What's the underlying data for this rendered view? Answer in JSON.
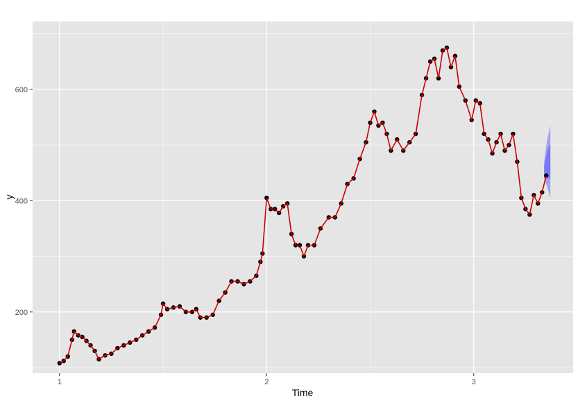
{
  "chart_data": {
    "type": "line",
    "title": "",
    "xlabel": "Time",
    "ylabel": "y",
    "xlim": [
      0.87,
      3.48
    ],
    "ylim": [
      90,
      722
    ],
    "x_ticks": [
      1,
      2,
      3
    ],
    "x_tick_labels": [
      "1",
      "2",
      "3"
    ],
    "y_ticks": [
      200,
      400,
      600
    ],
    "y_tick_labels": [
      "200",
      "400",
      "600"
    ],
    "x_minor_ticks": [
      1.5,
      2.5
    ],
    "y_minor_ticks": [
      100,
      300,
      500,
      700
    ],
    "grid": true,
    "colors": {
      "panel": "#e5e5e5",
      "grid_major": "#ffffff",
      "points": "#000000",
      "fitted": "#cc0000",
      "forecast_band": "#4d4dff"
    },
    "series": [
      {
        "kind": "points",
        "x": [
          1.0,
          1.02,
          1.04,
          1.06,
          1.07,
          1.09,
          1.11,
          1.13,
          1.15,
          1.17,
          1.19,
          1.22,
          1.25,
          1.28,
          1.31,
          1.34,
          1.37,
          1.4,
          1.43,
          1.46,
          1.49,
          1.5,
          1.52,
          1.55,
          1.58,
          1.61,
          1.64,
          1.66,
          1.68,
          1.71,
          1.74,
          1.77,
          1.8,
          1.83,
          1.86,
          1.89,
          1.92,
          1.95,
          1.97,
          1.98,
          2.0,
          2.02,
          2.04,
          2.06,
          2.08,
          2.1,
          2.12,
          2.14,
          2.16,
          2.18,
          2.2,
          2.23,
          2.26,
          2.3,
          2.33,
          2.36,
          2.39,
          2.42,
          2.45,
          2.48,
          2.5,
          2.52,
          2.54,
          2.56,
          2.58,
          2.6,
          2.63,
          2.66,
          2.69,
          2.72,
          2.75,
          2.77,
          2.79,
          2.81,
          2.83,
          2.85,
          2.87,
          2.89,
          2.91,
          2.93,
          2.96,
          2.99,
          3.01,
          3.03,
          3.05,
          3.07,
          3.09,
          3.11,
          3.13,
          3.15,
          3.17,
          3.19,
          3.21,
          3.23,
          3.25,
          3.27,
          3.29,
          3.31,
          3.33,
          3.35
        ],
        "y": [
          108,
          112,
          120,
          150,
          165,
          158,
          155,
          148,
          140,
          130,
          115,
          122,
          125,
          135,
          140,
          145,
          150,
          158,
          165,
          172,
          195,
          215,
          205,
          208,
          210,
          200,
          200,
          205,
          190,
          190,
          195,
          220,
          235,
          255,
          255,
          250,
          255,
          265,
          290,
          305,
          405,
          385,
          385,
          378,
          390,
          395,
          340,
          320,
          320,
          300,
          320,
          320,
          350,
          370,
          370,
          395,
          430,
          440,
          475,
          505,
          540,
          560,
          535,
          540,
          520,
          490,
          510,
          490,
          505,
          520,
          590,
          620,
          650,
          655,
          620,
          670,
          675,
          640,
          660,
          605,
          580,
          545,
          580,
          575,
          520,
          510,
          485,
          505,
          520,
          490,
          500,
          520,
          470,
          405,
          385,
          375,
          410,
          395,
          415,
          445
        ],
        "visible": true
      },
      {
        "kind": "fitted",
        "name": "",
        "x": [
          1.0,
          1.02,
          1.04,
          1.06,
          1.07,
          1.09,
          1.11,
          1.13,
          1.15,
          1.17,
          1.19,
          1.22,
          1.25,
          1.28,
          1.31,
          1.34,
          1.37,
          1.4,
          1.43,
          1.46,
          1.49,
          1.5,
          1.52,
          1.55,
          1.58,
          1.61,
          1.64,
          1.66,
          1.68,
          1.71,
          1.74,
          1.77,
          1.8,
          1.83,
          1.86,
          1.89,
          1.92,
          1.95,
          1.97,
          1.98,
          2.0,
          2.02,
          2.04,
          2.06,
          2.08,
          2.1,
          2.12,
          2.14,
          2.16,
          2.18,
          2.2,
          2.23,
          2.26,
          2.3,
          2.33,
          2.36,
          2.39,
          2.42,
          2.45,
          2.48,
          2.5,
          2.52,
          2.54,
          2.56,
          2.58,
          2.6,
          2.63,
          2.66,
          2.69,
          2.72,
          2.75,
          2.77,
          2.79,
          2.81,
          2.83,
          2.85,
          2.87,
          2.89,
          2.91,
          2.93,
          2.96,
          2.99,
          3.01,
          3.03,
          3.05,
          3.07,
          3.09,
          3.11,
          3.13,
          3.15,
          3.17,
          3.19,
          3.21,
          3.23,
          3.25,
          3.27,
          3.29,
          3.31,
          3.33,
          3.35
        ],
        "y": [
          108,
          112,
          120,
          150,
          165,
          158,
          155,
          148,
          140,
          130,
          115,
          122,
          125,
          135,
          140,
          145,
          150,
          158,
          165,
          172,
          195,
          215,
          205,
          208,
          210,
          200,
          200,
          205,
          190,
          190,
          195,
          220,
          235,
          255,
          255,
          250,
          255,
          265,
          290,
          305,
          405,
          385,
          385,
          378,
          390,
          395,
          340,
          320,
          320,
          300,
          320,
          320,
          350,
          370,
          370,
          395,
          430,
          440,
          475,
          505,
          540,
          560,
          535,
          540,
          520,
          490,
          510,
          490,
          505,
          520,
          590,
          620,
          650,
          655,
          620,
          670,
          675,
          640,
          660,
          605,
          580,
          545,
          580,
          575,
          520,
          510,
          485,
          505,
          520,
          490,
          500,
          520,
          470,
          405,
          385,
          375,
          410,
          395,
          415,
          445
        ]
      }
    ],
    "forecast_band": {
      "x": [
        3.34,
        3.355,
        3.37
      ],
      "upper": [
        470,
        510,
        535
      ],
      "lower": [
        440,
        425,
        405
      ]
    }
  }
}
